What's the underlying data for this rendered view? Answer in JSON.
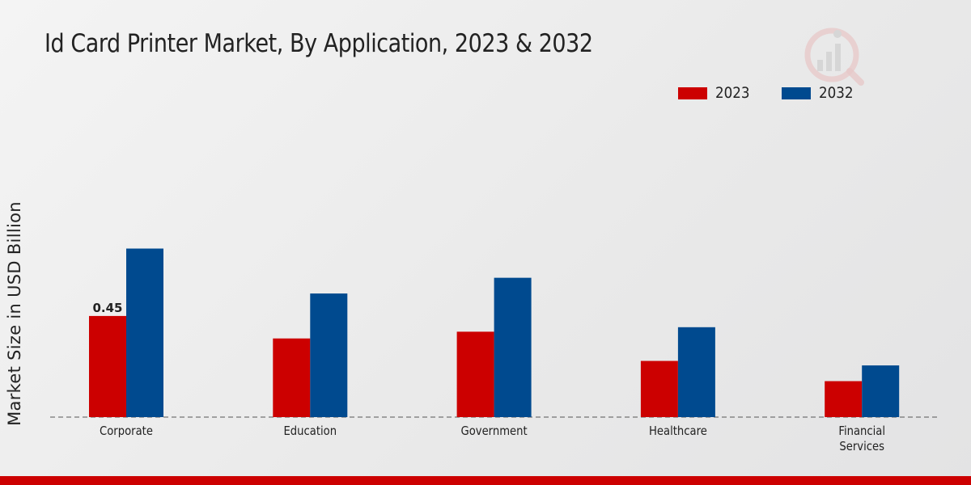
{
  "chart_data": {
    "type": "bar",
    "title": "Id Card Printer Market, By Application, 2023 & 2032",
    "xlabel": "",
    "ylabel": "Market Size in USD Billion",
    "categories": [
      "Corporate",
      "Education",
      "Government",
      "Healthcare",
      "Financial Services"
    ],
    "category_lines": [
      [
        "Corporate"
      ],
      [
        "Education"
      ],
      [
        "Government"
      ],
      [
        "Healthcare"
      ],
      [
        "Financial",
        "Services"
      ]
    ],
    "series": [
      {
        "name": "2023",
        "color": "#cc0000",
        "values": [
          0.45,
          0.35,
          0.38,
          0.25,
          0.16
        ]
      },
      {
        "name": "2032",
        "color": "#004a8f",
        "values": [
          0.75,
          0.55,
          0.62,
          0.4,
          0.23
        ]
      }
    ],
    "data_labels": [
      {
        "series": "2023",
        "category": "Corporate",
        "text": "0.45"
      }
    ],
    "ylim": [
      0,
      1.05
    ],
    "legend_position": "top-right",
    "grid": false
  }
}
